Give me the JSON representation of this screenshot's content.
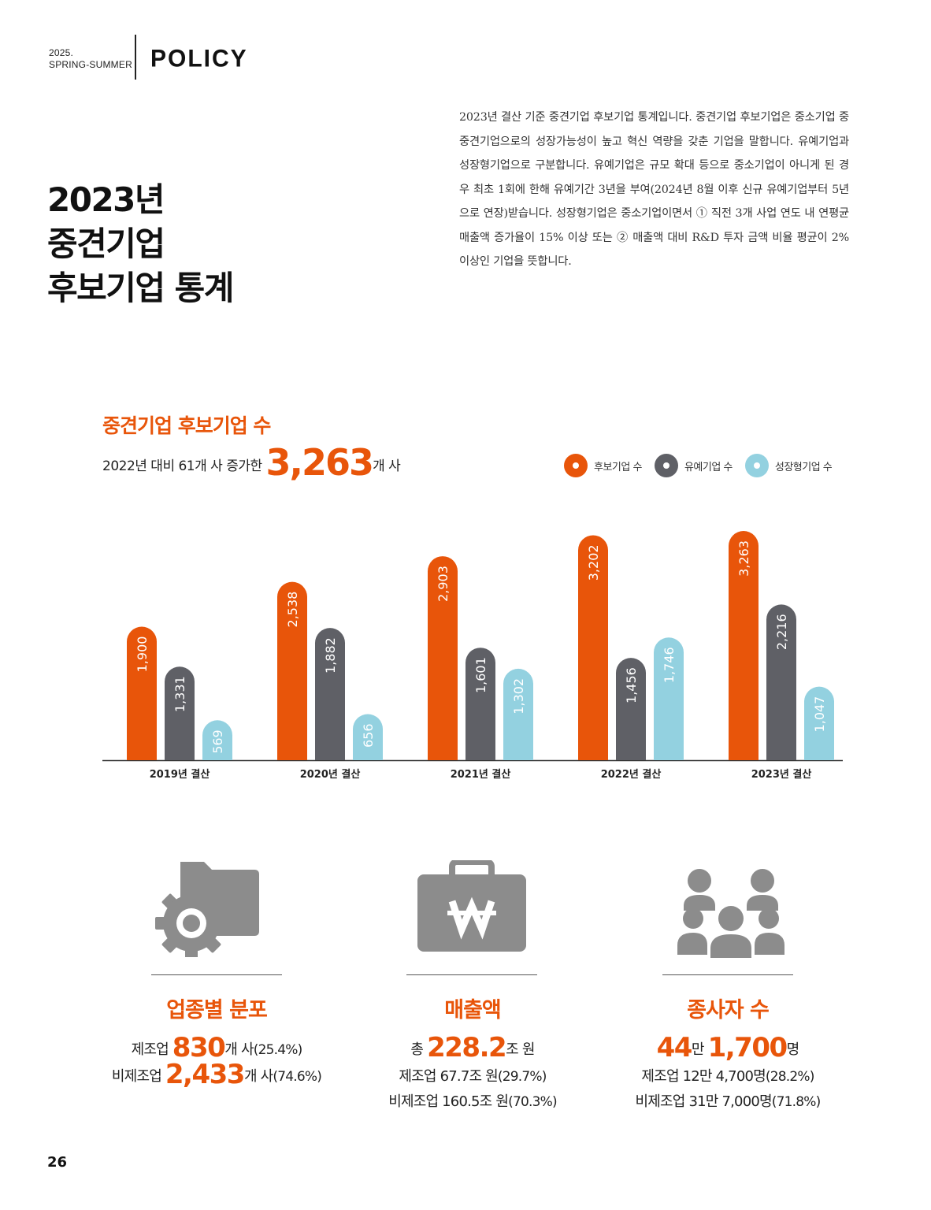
{
  "header": {
    "issue_year": "2025.",
    "issue_season": "SPRING-SUMMER",
    "section": "POLICY"
  },
  "title": {
    "line1": "2023년",
    "line2": "중견기업",
    "line3": "후보기업 통계"
  },
  "intro": "2023년 결산 기준 중견기업 후보기업 통계입니다. 중견기업 후보기업은 중소기업 중 중견기업으로의 성장가능성이 높고 혁신 역량을 갖춘 기업을 말합니다. 유예기업과 성장형기업으로 구분합니다. 유예기업은 규모 확대 등으로 중소기업이 아니게 된 경우 최초 1회에 한해 유예기간 3년을 부여(2024년 8월 이후 신규 유예기업부터 5년으로 연장)받습니다. 성장형기업은 중소기업이면서 ① 직전 3개 사업 연도 내 연평균 매출액 증가율이 15% 이상 또는 ② 매출액 대비 R&D 투자 금액 비율 평균이 2% 이상인 기업을 뜻합니다.",
  "chart_header": {
    "title": "중견기업 후보기업 수",
    "sub_prefix": "2022년 대비 61개 사 증가한 ",
    "sub_number": "3,263",
    "sub_suffix": "개 사"
  },
  "colors": {
    "accent": "#e8550a",
    "gray": "#5f6066",
    "lightblue": "#93d1e0"
  },
  "chart_data": {
    "type": "bar",
    "categories": [
      "2019년 결산",
      "2020년 결산",
      "2021년 결산",
      "2022년 결산",
      "2023년 결산"
    ],
    "series": [
      {
        "name": "후보기업 수",
        "color": "#e8550a",
        "values": [
          1900,
          2538,
          2903,
          3202,
          3263
        ],
        "labels": [
          "1,900",
          "2,538",
          "2,903",
          "3,202",
          "3,263"
        ]
      },
      {
        "name": "유예기업 수",
        "color": "#5f6066",
        "values": [
          1331,
          1882,
          1601,
          1456,
          2216
        ],
        "labels": [
          "1,331",
          "1,882",
          "1,601",
          "1,456",
          "2,216"
        ]
      },
      {
        "name": "성장형기업 수",
        "color": "#93d1e0",
        "values": [
          569,
          656,
          1302,
          1746,
          1047
        ],
        "labels": [
          "569",
          "656",
          "1,302",
          "1,746",
          "1,047"
        ]
      }
    ],
    "legend_position": "top-right",
    "grid": false
  },
  "stats": {
    "industry": {
      "icon": "gear-folder-icon",
      "title": "업종별 분포",
      "line1": {
        "prefix": "제조업 ",
        "num": "830",
        "suffix": "개 사",
        "pct": "(25.4%)"
      },
      "line2": {
        "prefix": "비제조업 ",
        "num": "2,433",
        "suffix": "개 사",
        "pct": "(74.6%)"
      }
    },
    "sales": {
      "icon": "briefcase-won-icon",
      "title": "매출액",
      "line1": {
        "prefix": "총 ",
        "num": "228.2",
        "suffix": "조 원"
      },
      "line2": {
        "text": "제조업 67.7조 원",
        "pct": "(29.7%)"
      },
      "line3": {
        "text": "비제조업 160.5조 원",
        "pct": "(70.3%)"
      }
    },
    "employees": {
      "icon": "people-group-icon",
      "title": "종사자 수",
      "line1": {
        "num1": "44",
        "mid": "만 ",
        "num2": "1,700",
        "suffix": "명"
      },
      "line2": {
        "text": "제조업 12만 4,700명",
        "pct": "(28.2%)"
      },
      "line3": {
        "text": "비제조업 31만 7,000명",
        "pct": "(71.8%)"
      }
    }
  },
  "page_number": "26"
}
